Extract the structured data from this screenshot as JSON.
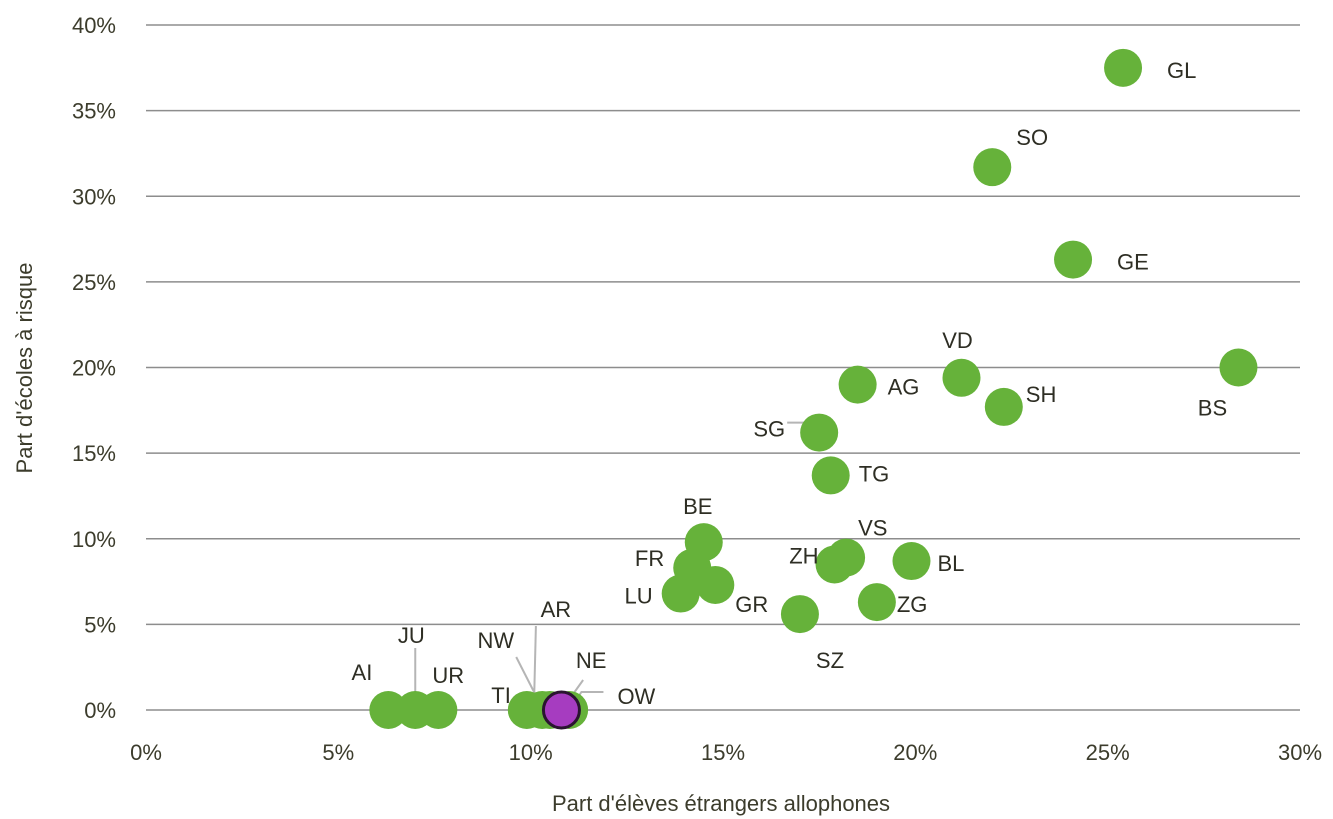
{
  "chart_data": {
    "type": "scatter",
    "title": "",
    "xlabel": "Part d'élèves étrangers allophones",
    "ylabel": "Part d'écoles à risque",
    "xlim": [
      0,
      30
    ],
    "ylim": [
      0,
      40
    ],
    "x_ticks": [
      "0%",
      "5%",
      "10%",
      "15%",
      "20%",
      "25%",
      "30%"
    ],
    "y_ticks": [
      "0%",
      "5%",
      "10%",
      "15%",
      "20%",
      "25%",
      "30%",
      "35%",
      "40%"
    ],
    "grid": "horizontal",
    "colors": {
      "default": "#66b23a",
      "highlight": "#a63cc0",
      "highlight_outline": "#2a1430",
      "grid": "#8d8d8d",
      "text": "#3c3c2c"
    },
    "points": [
      {
        "label": "GL",
        "x": 25.4,
        "y": 37.5
      },
      {
        "label": "SO",
        "x": 22.0,
        "y": 31.7
      },
      {
        "label": "GE",
        "x": 24.1,
        "y": 26.3
      },
      {
        "label": "BS",
        "x": 28.4,
        "y": 20.0
      },
      {
        "label": "VD",
        "x": 21.2,
        "y": 19.4
      },
      {
        "label": "SH",
        "x": 22.3,
        "y": 17.7
      },
      {
        "label": "AG",
        "x": 18.5,
        "y": 19.0
      },
      {
        "label": "SG",
        "x": 17.5,
        "y": 16.2
      },
      {
        "label": "TG",
        "x": 17.8,
        "y": 13.7
      },
      {
        "label": "BE",
        "x": 14.5,
        "y": 9.8
      },
      {
        "label": "FR",
        "x": 14.2,
        "y": 8.3
      },
      {
        "label": "GR",
        "x": 14.8,
        "y": 7.3
      },
      {
        "label": "LU",
        "x": 13.9,
        "y": 6.8
      },
      {
        "label": "VS",
        "x": 18.2,
        "y": 8.9
      },
      {
        "label": "ZH",
        "x": 17.9,
        "y": 8.5
      },
      {
        "label": "BL",
        "x": 19.9,
        "y": 8.7
      },
      {
        "label": "ZG",
        "x": 19.0,
        "y": 6.3
      },
      {
        "label": "SZ",
        "x": 17.0,
        "y": 5.6
      },
      {
        "label": "AI",
        "x": 6.3,
        "y": 0
      },
      {
        "label": "JU",
        "x": 7.0,
        "y": 0
      },
      {
        "label": "UR",
        "x": 7.6,
        "y": 0
      },
      {
        "label": "TI",
        "x": 9.9,
        "y": 0
      },
      {
        "label": "NW",
        "x": 10.3,
        "y": 0
      },
      {
        "label": "AR",
        "x": 10.5,
        "y": 0
      },
      {
        "label": "NE",
        "x": 11.0,
        "y": 0
      },
      {
        "label": "OW",
        "x": 10.8,
        "y": 0,
        "highlight": true
      }
    ]
  }
}
